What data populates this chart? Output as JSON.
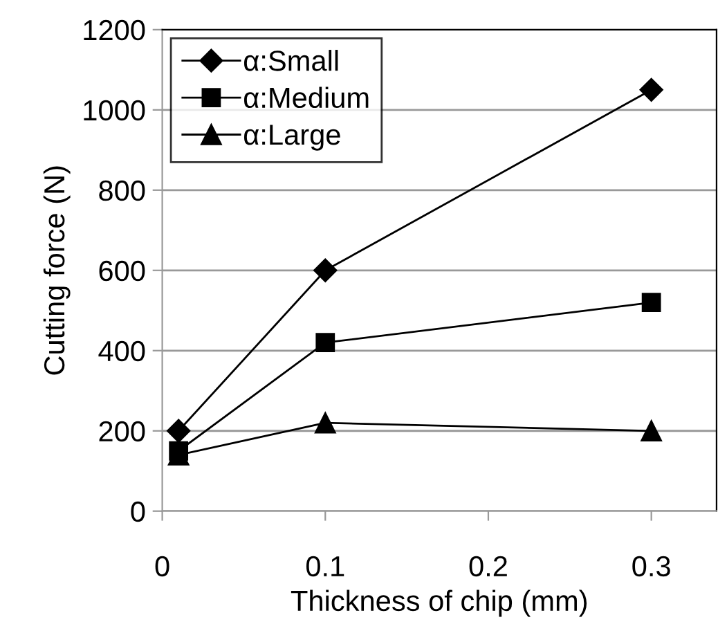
{
  "chart_data": {
    "type": "line",
    "xlabel": "Thickness of chip (mm)",
    "ylabel": "Cutting force (N)",
    "x": [
      0.01,
      0.1,
      0.3
    ],
    "series": [
      {
        "name": "α:Small",
        "color": "#000000",
        "marker": "diamond",
        "values": [
          200,
          600,
          1050
        ]
      },
      {
        "name": "α:Medium",
        "color": "#000000",
        "marker": "square",
        "values": [
          150,
          420,
          520
        ]
      },
      {
        "name": "α:Large",
        "color": "#000000",
        "marker": "triangle",
        "values": [
          140,
          220,
          200
        ]
      }
    ],
    "xlim": [
      0,
      0.34
    ],
    "xticks": [
      0,
      0.1,
      0.2,
      0.3
    ],
    "ylim": [
      0,
      1200
    ],
    "yticks": [
      0,
      200,
      400,
      600,
      800,
      1000,
      1200
    ],
    "grid": "y",
    "legend": "top left",
    "line_style": "solid"
  }
}
